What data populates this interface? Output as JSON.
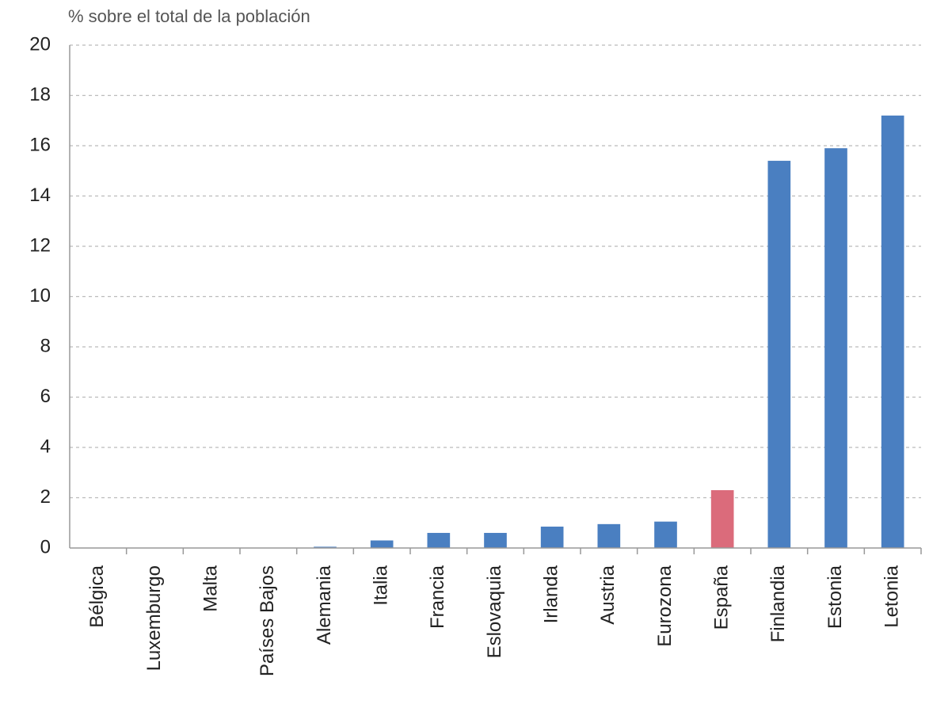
{
  "chart_data": {
    "type": "bar",
    "title": "% sobre el total de la población",
    "categories": [
      "Bélgica",
      "Luxemburgo",
      "Malta",
      "Países Bajos",
      "Alemania",
      "Italia",
      "Francia",
      "Eslovaquia",
      "Irlanda",
      "Austria",
      "Eurozona",
      "España",
      "Finlandia",
      "Estonia",
      "Letonia"
    ],
    "values": [
      0,
      0,
      0,
      0,
      0.05,
      0.3,
      0.6,
      0.6,
      0.85,
      0.95,
      1.05,
      2.3,
      15.4,
      15.9,
      17.2
    ],
    "colors": [
      "#4a7fc1",
      "#4a7fc1",
      "#4a7fc1",
      "#4a7fc1",
      "#4a7fc1",
      "#4a7fc1",
      "#4a7fc1",
      "#4a7fc1",
      "#4a7fc1",
      "#4a7fc1",
      "#4a7fc1",
      "#db6b7b",
      "#4a7fc1",
      "#4a7fc1",
      "#4a7fc1"
    ],
    "ylim": [
      0,
      20
    ],
    "yticks": [
      0,
      2,
      4,
      6,
      8,
      10,
      12,
      14,
      16,
      18,
      20
    ],
    "grid": true
  }
}
